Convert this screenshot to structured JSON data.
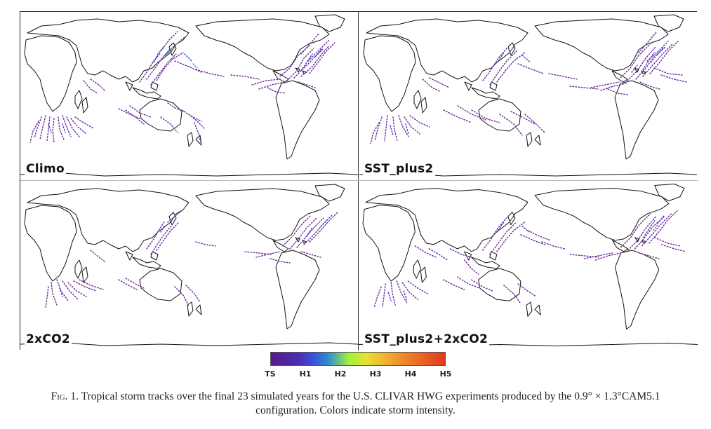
{
  "panels": [
    {
      "label": "Climo"
    },
    {
      "label": "SST_plus2"
    },
    {
      "label": "2xCO2"
    },
    {
      "label": "SST_plus2+2xCO2"
    }
  ],
  "colorbar": {
    "ticks": [
      "TS",
      "H1",
      "H2",
      "H3",
      "H4",
      "H5"
    ],
    "colors": [
      "#5a1a8a",
      "#4b2fb0",
      "#2f8fd0",
      "#a6f03a",
      "#f0b030",
      "#e03a1e"
    ]
  },
  "caption": {
    "fig_label": "Fig. 1.",
    "text": "Tropical storm tracks over the final 23 simulated years for the U.S. CLIVAR HWG experiments produced by the 0.9° × 1.3°CAM5.1 configuration. Colors indicate storm intensity."
  },
  "colors": {
    "track_ts": "#6a2a9a",
    "track_h1": "#3b3fd0",
    "coast": "#111111"
  }
}
